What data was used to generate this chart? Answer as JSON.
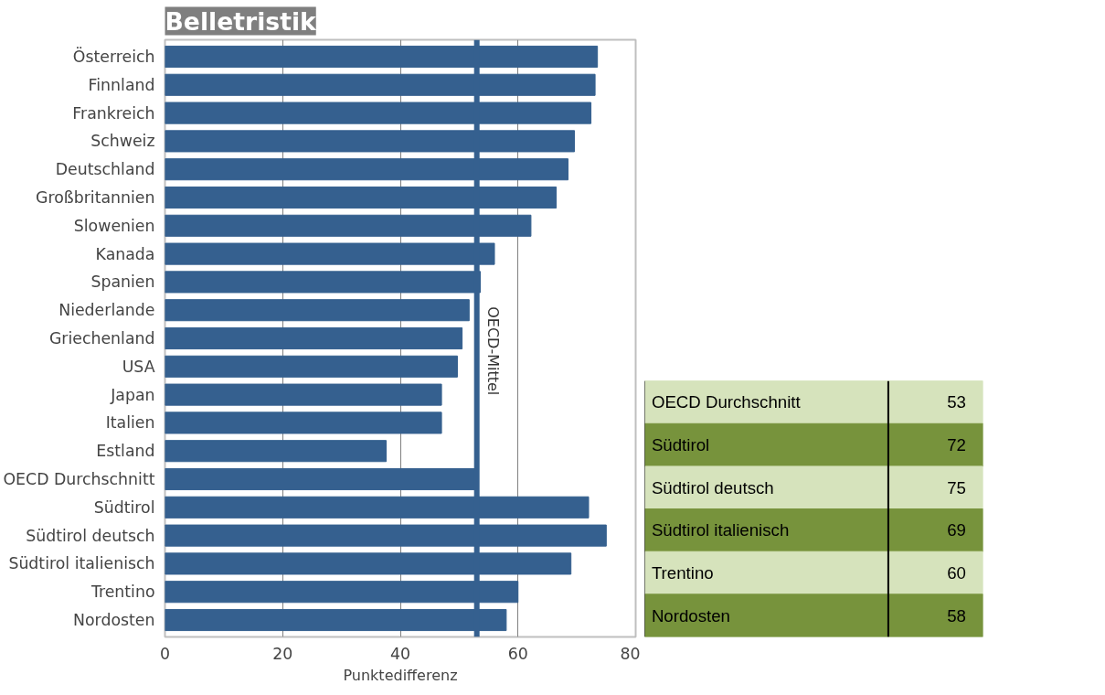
{
  "chart_data": [
    {
      "type": "bar",
      "orientation": "horizontal",
      "title": "Belletristik",
      "xlabel": "Punktedifferenz",
      "categories": [
        "Österreich",
        "Finnland",
        "Frankreich",
        "Schweiz",
        "Deutschland",
        "Großbritannien",
        "Slowenien",
        "Kanada",
        "Spanien",
        "Niederlande",
        "Griechenland",
        "USA",
        "Japan",
        "Italien",
        "Estland",
        "OECD Durchschnitt",
        "Südtirol",
        "Südtirol deutsch",
        "Südtirol italienisch",
        "Trentino",
        "Nordosten"
      ],
      "values": [
        73.5,
        73.1,
        72.4,
        69.6,
        68.5,
        66.5,
        62.2,
        56,
        53.6,
        51.7,
        50.5,
        49.7,
        47,
        47,
        37.6,
        53,
        72,
        75,
        69,
        60,
        58
      ],
      "color": "#35608f",
      "xlim": [
        0,
        80
      ],
      "xticks": [
        0,
        20,
        40,
        60,
        80
      ],
      "grid": "x",
      "ref_lines": [
        {
          "axis": "x",
          "value": 53,
          "label": "OECD-Mittel",
          "color": "#35608f"
        }
      ]
    },
    {
      "type": "other",
      "categories": [
        "OECD Durchschnitt",
        "Südtirol",
        "Südtirol deutsch",
        "Südtirol italienisch",
        "Trentino",
        "Nordosten"
      ],
      "values": [
        53,
        72,
        75,
        69,
        60,
        58
      ],
      "data_labels": true,
      "colors": [
        "#d6e3bc",
        "#77933c",
        "#d6e3bc",
        "#77933c",
        "#d6e3bc",
        "#77933c"
      ]
    }
  ]
}
